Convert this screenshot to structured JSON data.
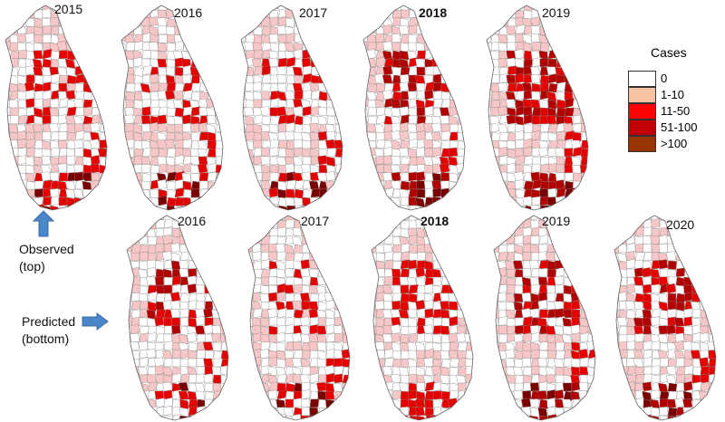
{
  "top_row": {
    "label": "Observed\n(top)",
    "label_line1": "Observed",
    "label_line2": "(top)",
    "maps": [
      {
        "year": "2015",
        "bold": false,
        "intensity": 1
      },
      {
        "year": "2016",
        "bold": false,
        "intensity": 1
      },
      {
        "year": "2017",
        "bold": false,
        "intensity": 1
      },
      {
        "year": "2018",
        "bold": true,
        "intensity": 3
      },
      {
        "year": "2019",
        "bold": false,
        "intensity": 4
      }
    ]
  },
  "bottom_row": {
    "label_line1": "Predicted",
    "label_line2": "(bottom)",
    "maps": [
      {
        "year": "2016",
        "bold": false,
        "intensity": 2
      },
      {
        "year": "2017",
        "bold": false,
        "intensity": 1
      },
      {
        "year": "2018",
        "bold": true,
        "intensity": 0
      },
      {
        "year": "2019",
        "bold": false,
        "intensity": 3
      },
      {
        "year": "2020",
        "bold": false,
        "intensity": 4
      }
    ]
  },
  "legend": {
    "title": "Cases",
    "items": [
      {
        "label": "0",
        "color": "#ffffff"
      },
      {
        "label": "1-10",
        "color": "#f6c2a1"
      },
      {
        "label": "11-50",
        "color": "#ff0000"
      },
      {
        "label": "51-100",
        "color": "#c00000"
      },
      {
        "label": ">100",
        "color": "#993300"
      }
    ]
  },
  "colors": {
    "district_light": "#f7c6c6",
    "district_red": "#e50000",
    "district_dark": "#b00000",
    "district_darkest": "#7a0000",
    "arrow": "#4a86c8",
    "outline": "#888888"
  }
}
